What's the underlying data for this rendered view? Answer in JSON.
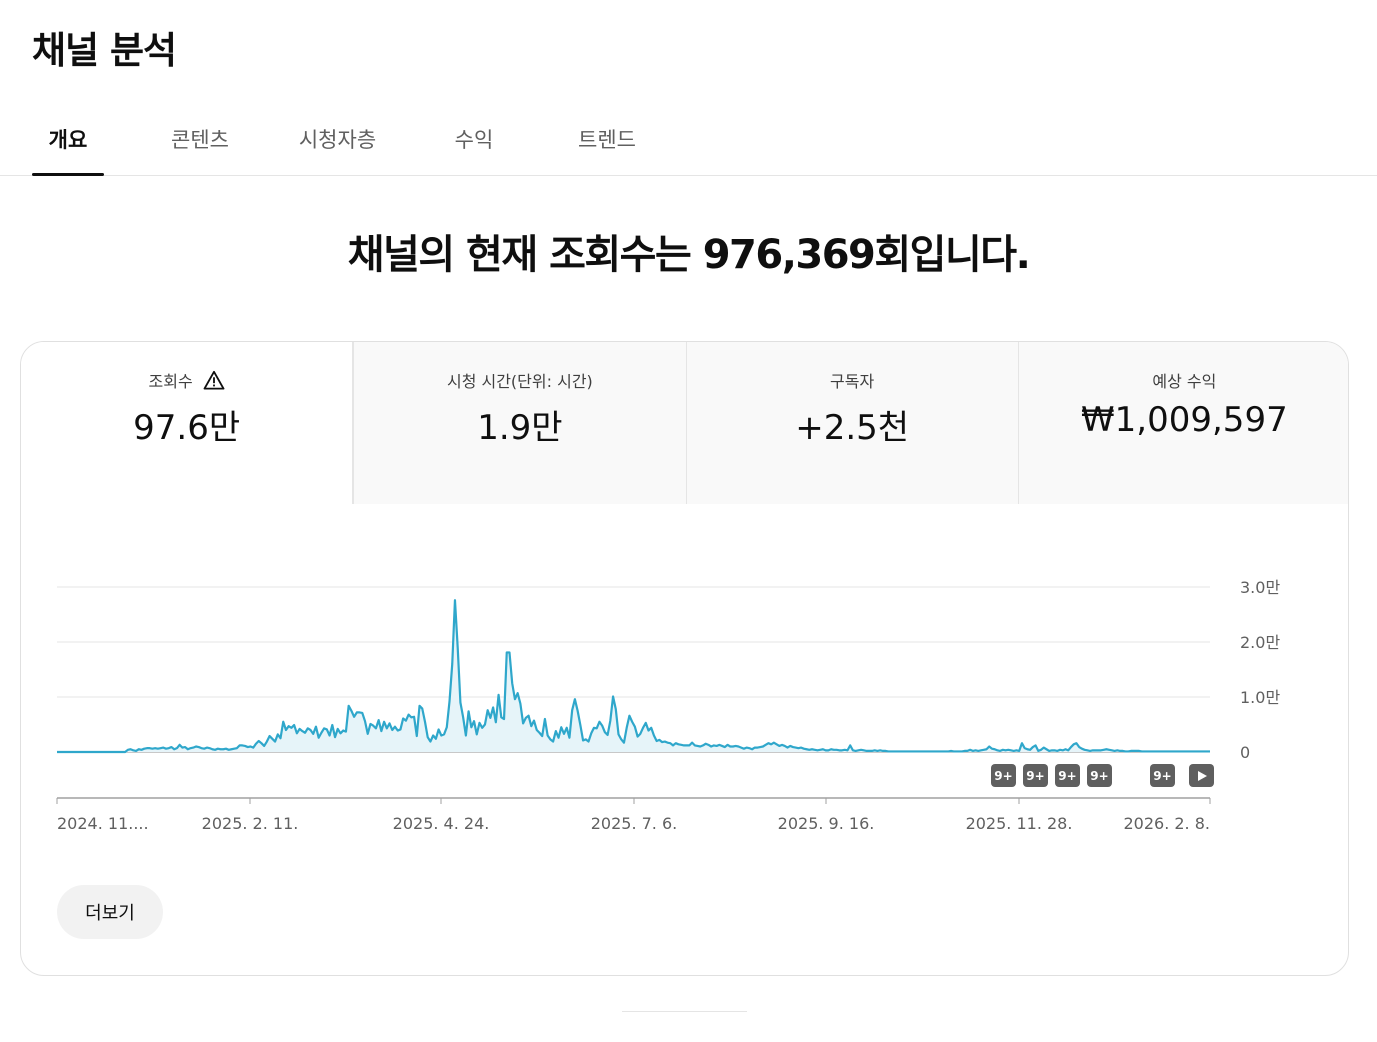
{
  "page": {
    "title": "채널 분석",
    "headline": "채널의 현재 조회수는 976,369회입니다."
  },
  "tabs": [
    {
      "label": "개요",
      "active": true
    },
    {
      "label": "콘텐츠",
      "active": false
    },
    {
      "label": "시청자층",
      "active": false
    },
    {
      "label": "수익",
      "active": false
    },
    {
      "label": "트렌드",
      "active": false
    }
  ],
  "metrics": [
    {
      "label": "조회수",
      "value": "97.6만",
      "icon": "warning-icon"
    },
    {
      "label": "시청 시간(단위: 시간)",
      "value": "1.9만"
    },
    {
      "label": "구독자",
      "value": "+2.5천"
    },
    {
      "label": "예상 수익",
      "value": "₩1,009,597"
    }
  ],
  "annotations": [
    "9+",
    "9+",
    "9+",
    "9+",
    "9+"
  ],
  "more_button": "더보기",
  "colors": {
    "line": "#2fa7cb",
    "fill": "#e6f4f9",
    "accent": "#0f0f0f"
  },
  "chart_data": {
    "type": "area",
    "y_tick_labels": [
      "0",
      "1.0만",
      "2.0만",
      "3.0만"
    ],
    "y_ticks": [
      0,
      10000,
      20000,
      30000
    ],
    "ylim": [
      0,
      30000
    ],
    "x_tick_labels": [
      "2024. 11....",
      "2025. 2. 11.",
      "2025. 4. 24.",
      "2025. 7. 6.",
      "2025. 9. 16.",
      "2025. 11. 28.",
      "2026. 2. 8."
    ],
    "grid": true,
    "series": [
      {
        "values": [
          0,
          0,
          0,
          0,
          0,
          0,
          0,
          0,
          0,
          0,
          0,
          0,
          0,
          0,
          0,
          0,
          0,
          0,
          0,
          0,
          0,
          0,
          0,
          0,
          0,
          0,
          400,
          500,
          300,
          200,
          500,
          400,
          600,
          700,
          700,
          600,
          700,
          600,
          700,
          800,
          600,
          700,
          900,
          500,
          700,
          1300,
          800,
          900,
          500,
          700,
          800,
          1000,
          900,
          700,
          600,
          800,
          700,
          500,
          400,
          600,
          500,
          500,
          600,
          400,
          500,
          600,
          700,
          1200,
          1200,
          1100,
          900,
          1000,
          800,
          1500,
          2000,
          1600,
          1100,
          1900,
          2900,
          2400,
          1900,
          3200,
          2500,
          5500,
          4000,
          4700,
          4400,
          4900,
          3400,
          4200,
          3800,
          3500,
          4300,
          4000,
          3300,
          4600,
          2600,
          3500,
          4300,
          4100,
          3000,
          4900,
          2700,
          4200,
          3400,
          3900,
          3700,
          8400,
          7500,
          6400,
          7200,
          7200,
          7100,
          5600,
          3300,
          5100,
          4800,
          4300,
          5800,
          3800,
          5500,
          4300,
          5200,
          4000,
          4600,
          3900,
          4100,
          6100,
          5700,
          6800,
          6300,
          6400,
          2900,
          8400,
          7900,
          5500,
          2700,
          1900,
          3000,
          2400,
          4100,
          3000,
          3200,
          4500,
          9200,
          16000,
          27600,
          19000,
          9000,
          6300,
          3000,
          7400,
          4500,
          5600,
          3200,
          5300,
          4400,
          5000,
          7600,
          6200,
          8100,
          5400,
          10400,
          6300,
          6000,
          18100,
          18100,
          12500,
          9600,
          10700,
          8800,
          5200,
          6200,
          6600,
          4700,
          5700,
          4000,
          3500,
          2900,
          6000,
          3000,
          2300,
          1900,
          3800,
          2600,
          4500,
          3300,
          4400,
          2600,
          7600,
          9600,
          7500,
          4900,
          2100,
          2300,
          1900,
          3400,
          4400,
          4300,
          5500,
          4800,
          3600,
          3100,
          5700,
          10100,
          7800,
          3200,
          2300,
          1700,
          4400,
          6600,
          5500,
          4600,
          2800,
          3300,
          4400,
          5300,
          3900,
          4400,
          3000,
          2000,
          2200,
          1800,
          1900,
          1700,
          1600,
          1200,
          1600,
          1400,
          1300,
          1200,
          1200,
          1200,
          1700,
          1200,
          1100,
          1000,
          1200,
          1500,
          1300,
          1000,
          1200,
          1100,
          1300,
          1100,
          900,
          1300,
          1000,
          1000,
          1100,
          1000,
          800,
          600,
          800,
          700,
          500,
          800,
          800,
          900,
          1000,
          1300,
          1600,
          1400,
          1700,
          1400,
          1100,
          1300,
          1100,
          800,
          1100,
          900,
          800,
          700,
          800,
          600,
          500,
          400,
          500,
          400,
          300,
          400,
          500,
          300,
          300,
          500,
          400,
          400,
          300,
          300,
          400,
          300,
          1200,
          300,
          200,
          300,
          400,
          300,
          200,
          200,
          200,
          300,
          200,
          300,
          200,
          200,
          100,
          100,
          100,
          100,
          100,
          100,
          100,
          100,
          100,
          100,
          100,
          100,
          100,
          100,
          100,
          100,
          100,
          100,
          100,
          100,
          100,
          100,
          100,
          200,
          100,
          100,
          100,
          100,
          200,
          200,
          400,
          200,
          300,
          200,
          300,
          400,
          500,
          1000,
          600,
          500,
          300,
          200,
          400,
          300,
          400,
          300,
          200,
          300,
          200,
          1600,
          700,
          500,
          400,
          900,
          1200,
          200,
          400,
          800,
          500,
          200,
          300,
          300,
          200,
          400,
          300,
          500,
          300,
          900,
          1400,
          1600,
          900,
          600,
          400,
          300,
          200,
          300,
          300,
          300,
          300,
          400,
          500,
          400,
          300,
          200,
          300,
          200,
          200,
          100,
          100,
          200,
          200,
          200,
          200,
          100,
          100,
          100,
          100,
          100,
          100,
          100,
          100,
          100,
          100,
          100,
          100,
          100,
          100,
          100,
          100,
          100,
          100,
          100,
          100,
          100,
          100,
          100,
          100,
          100,
          100
        ]
      }
    ]
  }
}
